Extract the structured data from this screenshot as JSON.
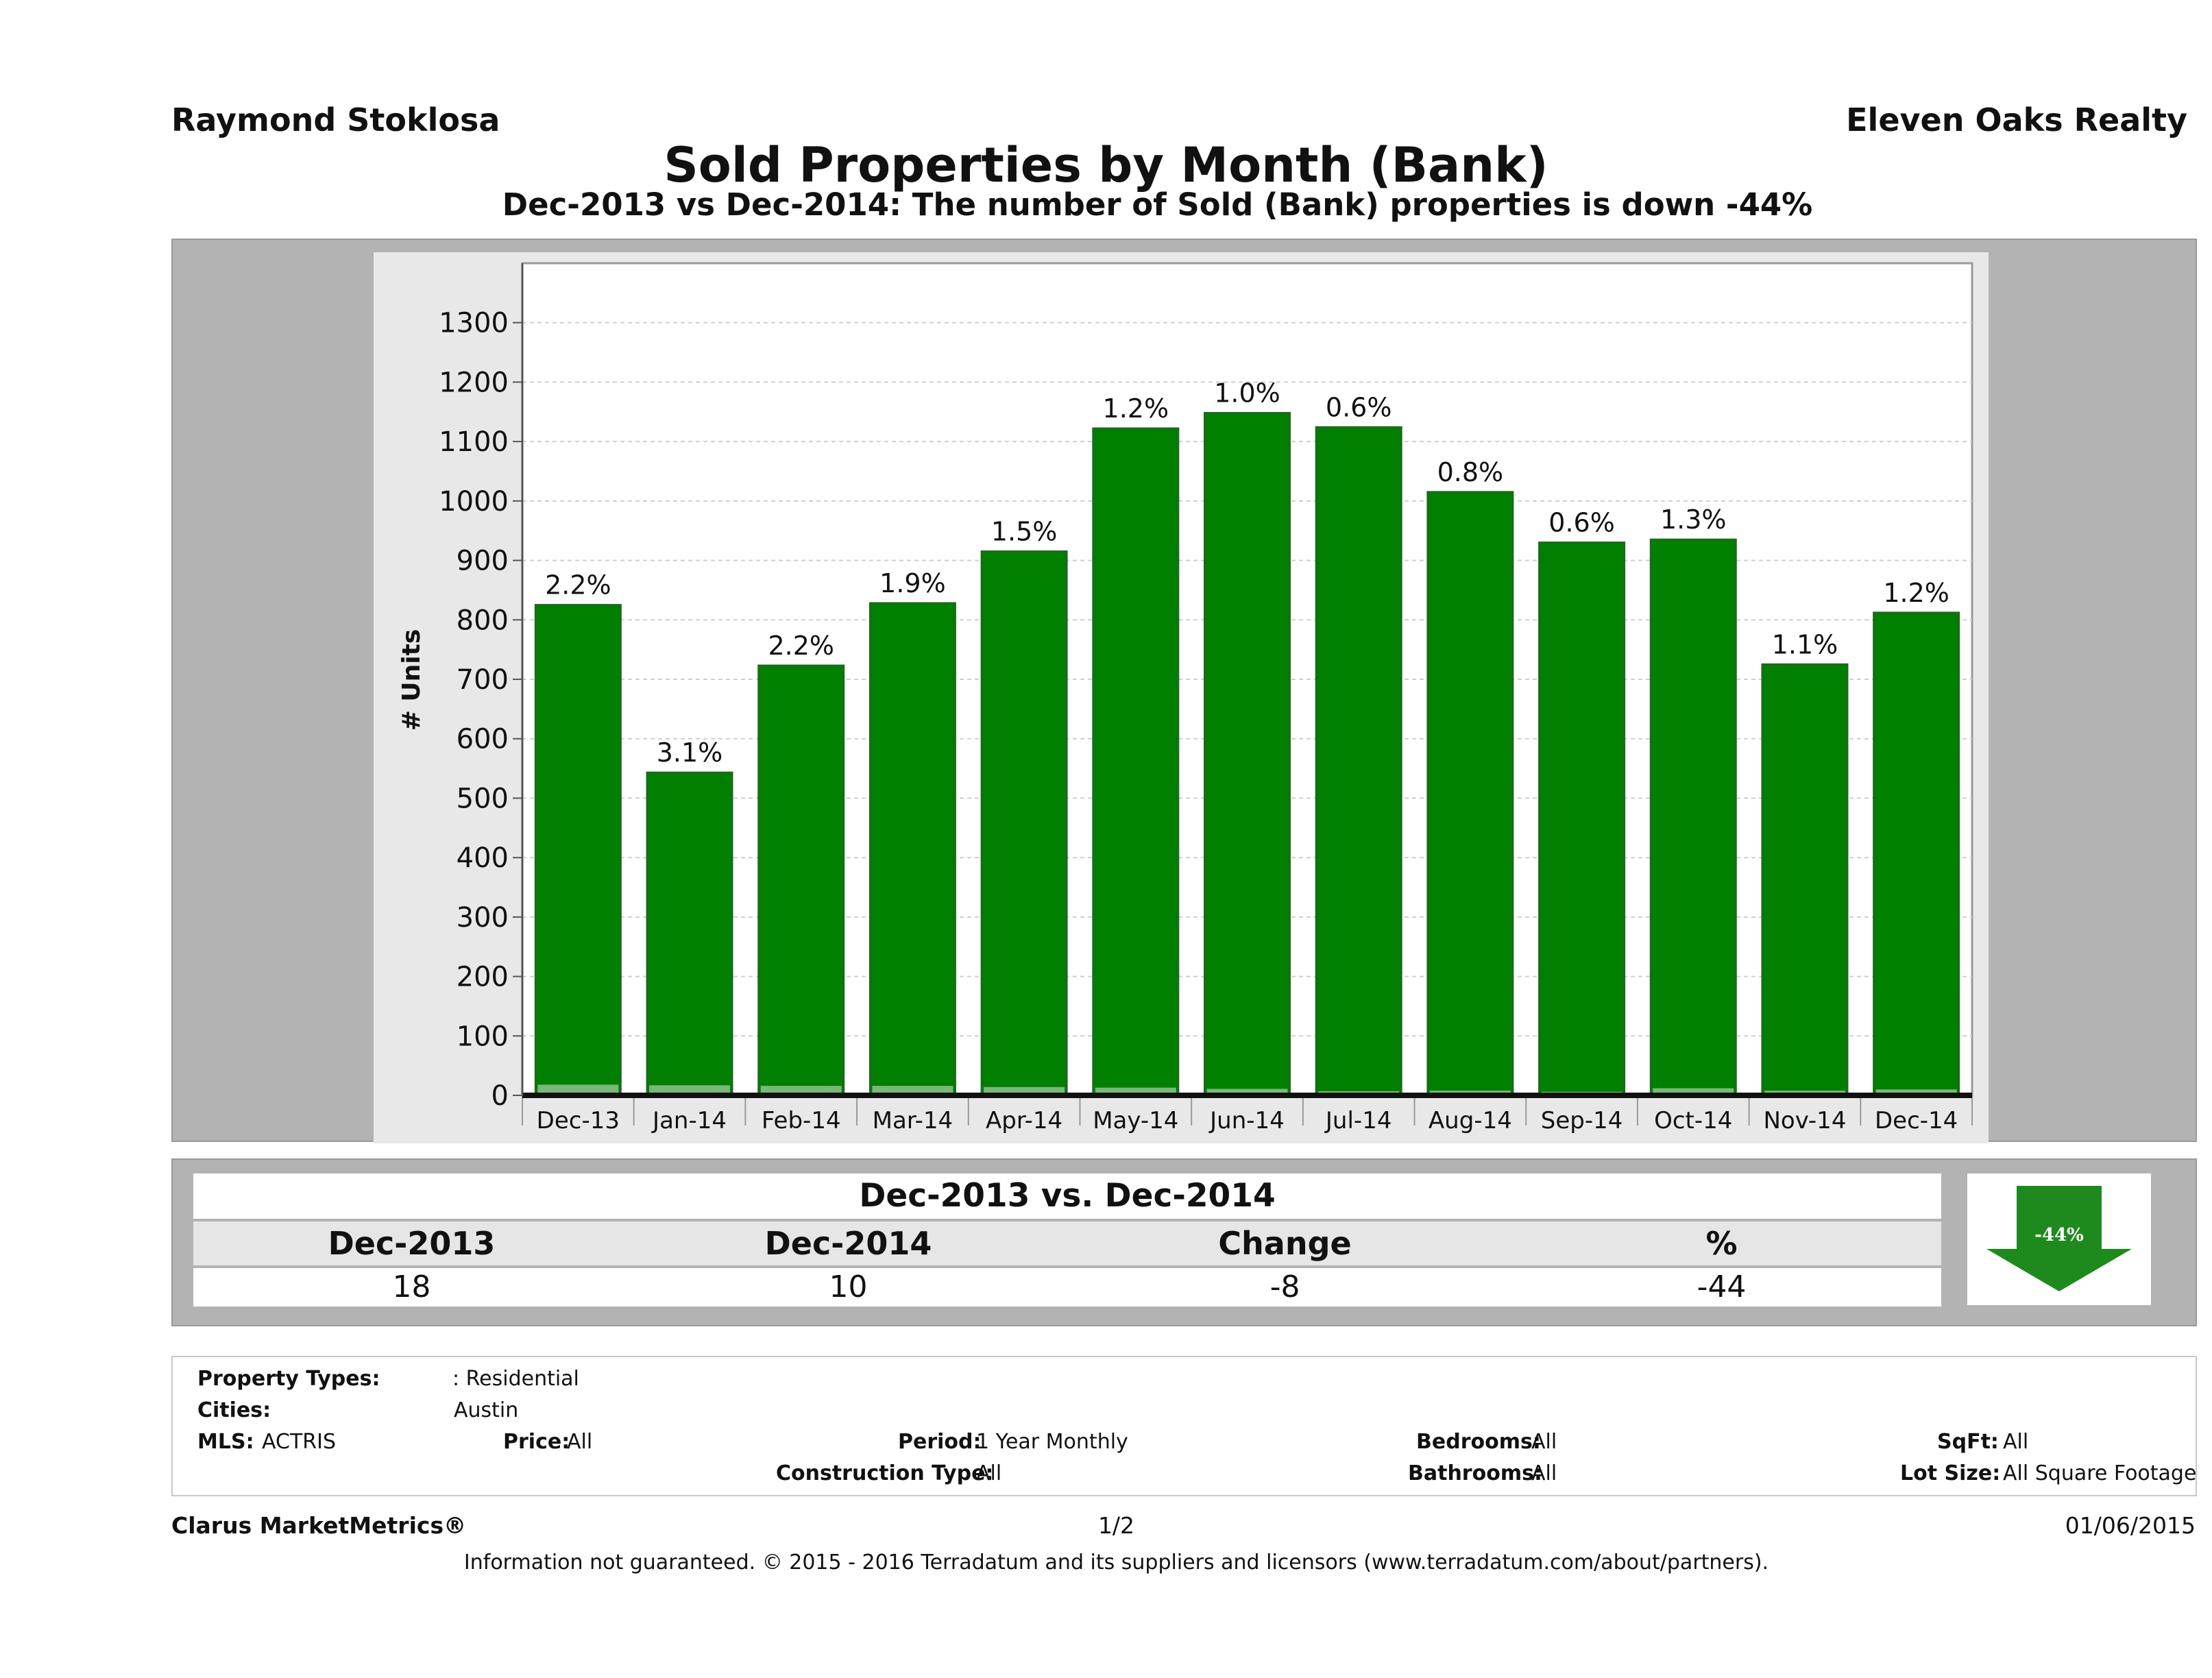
{
  "header": {
    "agent": "Raymond Stoklosa",
    "brokerage": "Eleven Oaks Realty",
    "title": "Sold Properties by Month (Bank)",
    "subtitle": "Dec-2013 vs Dec-2014: The number of Sold (Bank)  properties is down -44%"
  },
  "chart_data": {
    "type": "bar",
    "ylabel": "# Units",
    "xlabel": "",
    "ylim": [
      0,
      1300
    ],
    "yticks": [
      0,
      100,
      200,
      300,
      400,
      500,
      600,
      700,
      800,
      900,
      1000,
      1100,
      1200,
      1300
    ],
    "grid": true,
    "categories": [
      "Dec-13",
      "Jan-14",
      "Feb-14",
      "Mar-14",
      "Apr-14",
      "May-14",
      "Jun-14",
      "Jul-14",
      "Aug-14",
      "Sep-14",
      "Oct-14",
      "Nov-14",
      "Dec-14"
    ],
    "values": [
      825,
      543,
      723,
      828,
      915,
      1122,
      1148,
      1124,
      1015,
      930,
      935,
      725,
      812
    ],
    "bank_values": [
      18,
      17,
      16,
      16,
      14,
      13,
      11,
      7,
      8,
      6,
      12,
      8,
      10
    ],
    "data_labels": [
      "2.2%",
      "3.1%",
      "2.2%",
      "1.9%",
      "1.5%",
      "1.2%",
      "1.0%",
      "0.6%",
      "0.8%",
      "0.6%",
      "1.3%",
      "1.1%",
      "1.2%"
    ],
    "colors": {
      "bar": "#007f00",
      "bar_edge": "#1a6b1a",
      "bank": "#7ab87a",
      "grid": "#cfcfcf",
      "axis": "#111111"
    }
  },
  "summary": {
    "title": "Dec-2013 vs. Dec-2014",
    "headers": [
      "Dec-2013",
      "Dec-2014",
      "Change",
      "%"
    ],
    "values": [
      "18",
      "10",
      "-8",
      "-44"
    ],
    "badge": "-44%",
    "badge_color": "#1e8a1e"
  },
  "filters": {
    "property_types_label": "Property Types:",
    "property_types_value": ": Residential",
    "cities_label": "Cities:",
    "cities_value": "Austin",
    "mls_label": "MLS:",
    "mls_value": "ACTRIS",
    "price_label": "Price:",
    "price_value": "All",
    "period_label": "Period:",
    "period_value": "1 Year Monthly",
    "construction_label": "Construction Type:",
    "construction_value": "All",
    "bedrooms_label": "Bedrooms:",
    "bedrooms_value": "All",
    "bathrooms_label": "Bathrooms:",
    "bathrooms_value": "All",
    "sqft_label": "SqFt:",
    "sqft_value": "All",
    "lot_label": "Lot Size:",
    "lot_value": "All Square Footage"
  },
  "footer": {
    "brand": "Clarus MarketMetrics®",
    "page": "1/2",
    "date": "01/06/2015",
    "disclaimer": "Information not guaranteed. © 2015 - 2016 Terradatum and its suppliers and licensors (www.terradatum.com/about/partners)."
  }
}
